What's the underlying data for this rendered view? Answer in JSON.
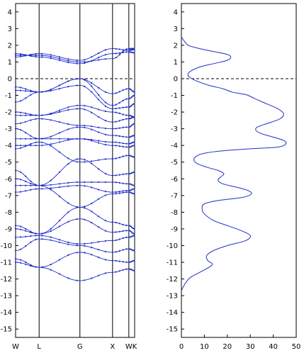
{
  "chart_data": [
    {
      "type": "line",
      "ylim": [
        -15.5,
        4.5
      ],
      "grid": false,
      "yticks": [
        4,
        3,
        2,
        1,
        0,
        -1,
        -2,
        -3,
        -4,
        -5,
        -6,
        -7,
        -8,
        -9,
        -10,
        -11,
        -12,
        -13,
        -14,
        -15
      ],
      "kpoints": [
        {
          "label": "W",
          "k": 0.0
        },
        {
          "label": "L",
          "k": 0.866
        },
        {
          "label": "G",
          "k": 2.366
        },
        {
          "label": "X",
          "k": 3.566
        },
        {
          "label": "W",
          "k": 4.166
        },
        {
          "label": "K",
          "k": 4.379
        }
      ],
      "reference_line": {
        "y": 0,
        "style": "dashed"
      },
      "bands": [
        {
          "k": [
            0.0,
            0.866,
            2.366,
            3.566,
            4.166,
            4.379
          ],
          "e": [
            1.5,
            1.3,
            0.9,
            1.5,
            1.6,
            1.55
          ]
        },
        {
          "k": [
            0.0,
            0.866,
            2.366,
            3.566,
            4.166,
            4.379
          ],
          "e": [
            1.3,
            1.5,
            1.1,
            1.8,
            1.7,
            1.75
          ]
        },
        {
          "k": [
            0.0,
            0.866,
            2.366,
            3.566,
            4.166,
            4.379
          ],
          "e": [
            1.4,
            1.4,
            1.0,
            1.2,
            1.8,
            1.8
          ]
        },
        {
          "k": [
            0.0,
            0.866,
            2.366,
            3.566,
            4.166,
            4.379
          ],
          "e": [
            -0.7,
            -0.8,
            0.0,
            -0.9,
            -0.6,
            -0.8
          ]
        },
        {
          "k": [
            0.0,
            0.866,
            2.366,
            3.566,
            4.166,
            4.379
          ],
          "e": [
            -0.5,
            -0.8,
            0.0,
            -1.6,
            -1.2,
            -1.0
          ]
        },
        {
          "k": [
            0.0,
            0.866,
            2.366,
            3.566,
            4.166,
            4.379
          ],
          "e": [
            -1.4,
            -0.8,
            -0.4,
            -1.8,
            -1.7,
            -1.5
          ]
        },
        {
          "k": [
            0.0,
            0.866,
            2.366,
            3.566,
            4.166,
            4.379
          ],
          "e": [
            -2.2,
            -2.2,
            -1.6,
            -2.0,
            -2.2,
            -2.3
          ]
        },
        {
          "k": [
            0.0,
            0.866,
            2.366,
            3.566,
            4.166,
            4.379
          ],
          "e": [
            -2.0,
            -2.2,
            -1.8,
            -2.6,
            -2.4,
            -2.3
          ]
        },
        {
          "k": [
            0.0,
            0.866,
            2.366,
            3.566,
            4.166,
            4.379
          ],
          "e": [
            -2.7,
            -2.4,
            -2.8,
            -3.0,
            -2.9,
            -2.7
          ]
        },
        {
          "k": [
            0.0,
            0.866,
            2.366,
            3.566,
            4.166,
            4.379
          ],
          "e": [
            -3.0,
            -3.6,
            -2.9,
            -3.4,
            -3.5,
            -3.4
          ]
        },
        {
          "k": [
            0.0,
            0.866,
            2.366,
            3.566,
            4.166,
            4.379
          ],
          "e": [
            -3.6,
            -3.6,
            -3.6,
            -3.8,
            -3.9,
            -3.8
          ]
        },
        {
          "k": [
            0.0,
            0.866,
            2.366,
            3.566,
            4.166,
            4.379
          ],
          "e": [
            -4.0,
            -4.0,
            -3.6,
            -4.0,
            -4.1,
            -4.0
          ]
        },
        {
          "k": [
            0.0,
            0.866,
            2.366,
            3.566,
            4.166,
            4.379
          ],
          "e": [
            -4.2,
            -3.8,
            -5.0,
            -4.8,
            -4.6,
            -4.7
          ]
        },
        {
          "k": [
            0.0,
            0.866,
            2.366,
            3.566,
            4.166,
            4.379
          ],
          "e": [
            -5.5,
            -6.4,
            -4.8,
            -5.8,
            -5.7,
            -5.6
          ]
        },
        {
          "k": [
            0.0,
            0.866,
            2.366,
            3.566,
            4.166,
            4.379
          ],
          "e": [
            -6.0,
            -6.4,
            -6.2,
            -6.2,
            -6.3,
            -6.4
          ]
        },
        {
          "k": [
            0.0,
            0.866,
            2.366,
            3.566,
            4.166,
            4.379
          ],
          "e": [
            -6.8,
            -6.6,
            -6.4,
            -6.8,
            -6.7,
            -6.6
          ]
        },
        {
          "k": [
            0.0,
            0.866,
            2.366,
            3.566,
            4.166,
            4.379
          ],
          "e": [
            -6.4,
            -6.4,
            -7.7,
            -6.9,
            -6.8,
            -6.9
          ]
        },
        {
          "k": [
            0.0,
            0.866,
            2.366,
            3.566,
            4.166,
            4.379
          ],
          "e": [
            -8.8,
            -9.3,
            -7.7,
            -8.6,
            -8.8,
            -9.0
          ]
        },
        {
          "k": [
            0.0,
            0.866,
            2.366,
            3.566,
            4.166,
            4.379
          ],
          "e": [
            -9.0,
            -9.3,
            -8.4,
            -9.2,
            -9.1,
            -9.3
          ]
        },
        {
          "k": [
            0.0,
            0.866,
            2.366,
            3.566,
            4.166,
            4.379
          ],
          "e": [
            -9.5,
            -9.4,
            -9.9,
            -9.7,
            -9.5,
            -9.4
          ]
        },
        {
          "k": [
            0.0,
            0.866,
            2.366,
            3.566,
            4.166,
            4.379
          ],
          "e": [
            -10.3,
            -9.6,
            -10.0,
            -10.4,
            -10.2,
            -10.3
          ]
        },
        {
          "k": [
            0.0,
            0.866,
            2.366,
            3.566,
            4.166,
            4.379
          ],
          "e": [
            -10.8,
            -11.3,
            -10.4,
            -10.9,
            -11.0,
            -10.9
          ]
        },
        {
          "k": [
            0.0,
            0.866,
            2.366,
            3.566,
            4.166,
            4.379
          ],
          "e": [
            -11.0,
            -11.3,
            -12.1,
            -11.6,
            -11.4,
            -11.5
          ]
        }
      ]
    },
    {
      "type": "line",
      "xlim": [
        0,
        50
      ],
      "ylim": [
        -15.5,
        4.5
      ],
      "grid": false,
      "xticks": [
        0,
        10,
        20,
        30,
        40,
        50
      ],
      "yticks": [
        4,
        3,
        2,
        1,
        0,
        -1,
        -2,
        -3,
        -4,
        -5,
        -6,
        -7,
        -8,
        -9,
        -10,
        -11,
        -12,
        -13,
        -14,
        -15
      ],
      "reference_line": {
        "y": 0,
        "style": "dashed"
      },
      "dos": [
        {
          "x": 0.0,
          "y": 2.5
        },
        {
          "x": 1.0,
          "y": 2.3
        },
        {
          "x": 3.0,
          "y": 2.0
        },
        {
          "x": 8.0,
          "y": 1.8
        },
        {
          "x": 15.0,
          "y": 1.6
        },
        {
          "x": 20.0,
          "y": 1.45
        },
        {
          "x": 21.5,
          "y": 1.3
        },
        {
          "x": 20.0,
          "y": 1.1
        },
        {
          "x": 14.0,
          "y": 0.9
        },
        {
          "x": 8.0,
          "y": 0.7
        },
        {
          "x": 4.0,
          "y": 0.45
        },
        {
          "x": 2.8,
          "y": 0.25
        },
        {
          "x": 3.5,
          "y": 0.1
        },
        {
          "x": 6.0,
          "y": -0.1
        },
        {
          "x": 12.0,
          "y": -0.4
        },
        {
          "x": 18.0,
          "y": -0.6
        },
        {
          "x": 22.0,
          "y": -0.8
        },
        {
          "x": 26.0,
          "y": -0.9
        },
        {
          "x": 29.0,
          "y": -1.0
        },
        {
          "x": 32.0,
          "y": -1.2
        },
        {
          "x": 37.0,
          "y": -1.5
        },
        {
          "x": 42.0,
          "y": -1.8
        },
        {
          "x": 44.5,
          "y": -2.1
        },
        {
          "x": 43.0,
          "y": -2.4
        },
        {
          "x": 37.0,
          "y": -2.7
        },
        {
          "x": 33.0,
          "y": -2.9
        },
        {
          "x": 32.5,
          "y": -3.1
        },
        {
          "x": 35.0,
          "y": -3.3
        },
        {
          "x": 40.0,
          "y": -3.5
        },
        {
          "x": 44.5,
          "y": -3.7
        },
        {
          "x": 45.5,
          "y": -3.9
        },
        {
          "x": 42.0,
          "y": -4.1
        },
        {
          "x": 30.0,
          "y": -4.2
        },
        {
          "x": 16.0,
          "y": -4.35
        },
        {
          "x": 9.0,
          "y": -4.5
        },
        {
          "x": 6.0,
          "y": -4.7
        },
        {
          "x": 5.5,
          "y": -4.9
        },
        {
          "x": 7.0,
          "y": -5.1
        },
        {
          "x": 11.0,
          "y": -5.3
        },
        {
          "x": 16.0,
          "y": -5.5
        },
        {
          "x": 18.5,
          "y": -5.7
        },
        {
          "x": 17.0,
          "y": -5.9
        },
        {
          "x": 16.0,
          "y": -6.1
        },
        {
          "x": 18.0,
          "y": -6.3
        },
        {
          "x": 24.0,
          "y": -6.5
        },
        {
          "x": 29.0,
          "y": -6.7
        },
        {
          "x": 30.5,
          "y": -6.9
        },
        {
          "x": 27.0,
          "y": -7.1
        },
        {
          "x": 16.0,
          "y": -7.3
        },
        {
          "x": 10.0,
          "y": -7.5
        },
        {
          "x": 9.0,
          "y": -7.8
        },
        {
          "x": 10.0,
          "y": -8.1
        },
        {
          "x": 14.0,
          "y": -8.5
        },
        {
          "x": 20.0,
          "y": -8.8
        },
        {
          "x": 26.0,
          "y": -9.1
        },
        {
          "x": 30.0,
          "y": -9.4
        },
        {
          "x": 28.0,
          "y": -9.7
        },
        {
          "x": 20.0,
          "y": -10.0
        },
        {
          "x": 14.0,
          "y": -10.3
        },
        {
          "x": 11.0,
          "y": -10.6
        },
        {
          "x": 11.5,
          "y": -10.9
        },
        {
          "x": 13.5,
          "y": -11.1
        },
        {
          "x": 12.0,
          "y": -11.3
        },
        {
          "x": 8.0,
          "y": -11.6
        },
        {
          "x": 4.0,
          "y": -11.9
        },
        {
          "x": 2.0,
          "y": -12.2
        },
        {
          "x": 0.7,
          "y": -12.5
        },
        {
          "x": 0.0,
          "y": -12.7
        }
      ]
    }
  ],
  "colors": {
    "band": "#1f2ec9",
    "axis": "#000000",
    "background": "#ffffff"
  }
}
